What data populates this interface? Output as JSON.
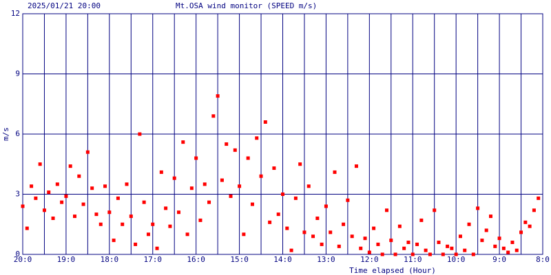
{
  "chart_data": {
    "type": "scatter",
    "date": "2025/01/21 20:00",
    "title": "Mt.OSA wind monitor (SPEED m/s)",
    "y_label": "m/s",
    "x_label": "Time elapsed (Hour)",
    "color": "#ff0000",
    "grid_color": "#000080",
    "grid": true,
    "xlim": [
      0,
      12
    ],
    "ylim": [
      0,
      12
    ],
    "yticks": [
      0,
      3,
      6,
      9,
      12
    ],
    "xticks": [
      {
        "value": 0,
        "label": "20:0"
      },
      {
        "value": 1,
        "label": "19:0"
      },
      {
        "value": 2,
        "label": "18:0"
      },
      {
        "value": 3,
        "label": "17:0"
      },
      {
        "value": 4,
        "label": "16:0"
      },
      {
        "value": 5,
        "label": "15:0"
      },
      {
        "value": 6,
        "label": "14:0"
      },
      {
        "value": 7,
        "label": "13:0"
      },
      {
        "value": 8,
        "label": "12:0"
      },
      {
        "value": 9,
        "label": "11:0"
      },
      {
        "value": 10,
        "label": "10:0"
      },
      {
        "value": 11,
        "label": "9:0"
      },
      {
        "value": 12,
        "label": "8:0"
      }
    ],
    "xminor": [
      0.5,
      1.5,
      2.5,
      3.5,
      4.5,
      5.5,
      6.5,
      7.5,
      8.5,
      9.5,
      10.5,
      11.5
    ],
    "x": [
      0.0,
      0.1,
      0.2,
      0.3,
      0.4,
      0.5,
      0.6,
      0.7,
      0.8,
      0.9,
      1.0,
      1.1,
      1.2,
      1.3,
      1.4,
      1.5,
      1.6,
      1.7,
      1.8,
      1.9,
      2.0,
      2.1,
      2.2,
      2.3,
      2.4,
      2.5,
      2.6,
      2.7,
      2.8,
      2.9,
      3.0,
      3.1,
      3.2,
      3.3,
      3.4,
      3.5,
      3.6,
      3.7,
      3.8,
      3.9,
      4.0,
      4.1,
      4.2,
      4.3,
      4.4,
      4.5,
      4.6,
      4.7,
      4.8,
      4.9,
      5.0,
      5.1,
      5.2,
      5.3,
      5.4,
      5.5,
      5.6,
      5.7,
      5.8,
      5.9,
      6.0,
      6.1,
      6.2,
      6.3,
      6.4,
      6.5,
      6.6,
      6.7,
      6.8,
      6.9,
      7.0,
      7.1,
      7.2,
      7.3,
      7.4,
      7.5,
      7.6,
      7.7,
      7.8,
      7.9,
      8.0,
      8.1,
      8.2,
      8.3,
      8.4,
      8.5,
      8.6,
      8.7,
      8.8,
      8.9,
      9.0,
      9.1,
      9.2,
      9.3,
      9.4,
      9.5,
      9.6,
      9.7,
      9.8,
      9.9,
      10.0,
      10.1,
      10.2,
      10.3,
      10.4,
      10.5,
      10.6,
      10.7,
      10.8,
      10.9,
      11.0,
      11.1,
      11.2,
      11.3,
      11.4,
      11.5,
      11.6,
      11.7,
      11.8,
      11.9
    ],
    "values": [
      2.4,
      1.3,
      3.4,
      2.8,
      4.5,
      2.2,
      3.1,
      1.8,
      3.5,
      2.6,
      2.9,
      4.4,
      1.9,
      3.9,
      2.5,
      5.1,
      3.3,
      2.0,
      1.5,
      3.4,
      2.1,
      0.7,
      2.8,
      1.5,
      3.5,
      1.9,
      0.5,
      6.0,
      2.6,
      1.0,
      1.5,
      0.3,
      4.1,
      2.3,
      1.4,
      3.8,
      2.1,
      5.6,
      1.0,
      3.3,
      4.8,
      1.7,
      3.5,
      2.6,
      6.9,
      7.9,
      3.7,
      5.5,
      2.9,
      5.2,
      3.4,
      1.0,
      4.8,
      2.5,
      5.8,
      3.9,
      6.6,
      1.6,
      4.3,
      2.0,
      3.0,
      1.3,
      0.2,
      2.8,
      4.5,
      1.1,
      3.4,
      0.9,
      1.8,
      0.5,
      2.4,
      1.1,
      4.1,
      0.4,
      1.5,
      2.7,
      0.9,
      4.4,
      0.3,
      0.8,
      0.1,
      1.3,
      0.5,
      0.0,
      2.2,
      0.7,
      0.0,
      1.4,
      0.3,
      0.6,
      0.0,
      0.5,
      1.7,
      0.2,
      0.0,
      2.2,
      0.6,
      0.0,
      0.4,
      0.3,
      0.0,
      0.9,
      0.2,
      1.5,
      0.0,
      2.3,
      0.7,
      1.2,
      1.9,
      0.4,
      0.8,
      0.3,
      0.1,
      0.6,
      0.2,
      1.1,
      1.6,
      1.4,
      2.2,
      2.8
    ]
  }
}
